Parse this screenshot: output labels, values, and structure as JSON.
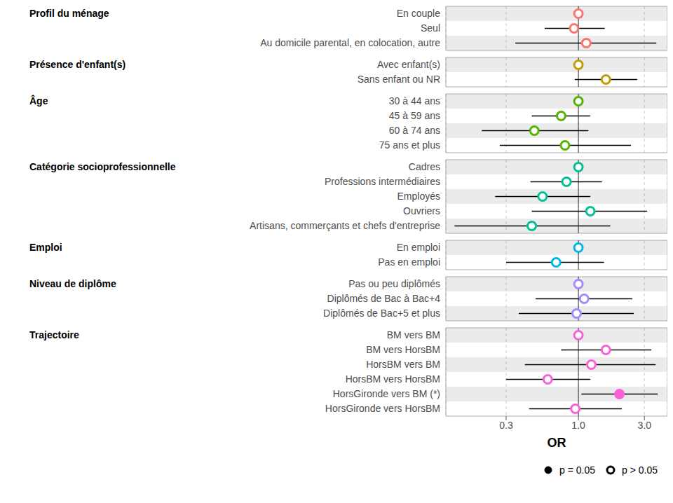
{
  "chart_data": {
    "type": "forest",
    "x_label": "OR",
    "log": "x",
    "xlim": [
      0.11,
      4.4
    ],
    "xticks": [
      0.3,
      {
        "value": 1,
        "label": "1.0"
      },
      {
        "value": 3,
        "label": "3.0"
      }
    ],
    "vline": 1,
    "grid": true,
    "legend": "bottom",
    "legend_items": [
      {
        "label": "p = 0.05",
        "marker": "filled"
      },
      {
        "label": "p > 0.05",
        "marker": "open"
      }
    ],
    "groups": [
      {
        "name": "Profil du ménage",
        "color": "#F8766D",
        "rows": [
          {
            "label": "En couple",
            "or": 1.0,
            "ci_low": null,
            "ci_high": null,
            "marker": "open"
          },
          {
            "label": "Seul",
            "or": 0.93,
            "ci_low": 0.57,
            "ci_high": 1.55,
            "marker": "open"
          },
          {
            "label": "Au domicile parental, en colocation, autre",
            "or": 1.14,
            "ci_low": 0.35,
            "ci_high": 3.66,
            "marker": "open"
          }
        ]
      },
      {
        "name": "Présence d'enfant(s)",
        "color": "#C49A00",
        "rows": [
          {
            "label": "Avec enfant(s)",
            "or": 1.0,
            "ci_low": null,
            "ci_high": null,
            "marker": "open"
          },
          {
            "label": "Sans enfant ou NR",
            "or": 1.58,
            "ci_low": 0.94,
            "ci_high": 2.66,
            "marker": "open"
          }
        ]
      },
      {
        "name": "Âge",
        "color": "#53B400",
        "rows": [
          {
            "label": "30 à 44 ans",
            "or": 1.0,
            "ci_low": null,
            "ci_high": null,
            "marker": "open"
          },
          {
            "label": "45 à 59 ans",
            "or": 0.75,
            "ci_low": 0.46,
            "ci_high": 1.22,
            "marker": "open"
          },
          {
            "label": "60 à 74 ans",
            "or": 0.48,
            "ci_low": 0.2,
            "ci_high": 1.18,
            "marker": "open"
          },
          {
            "label": "75 ans et plus",
            "or": 0.8,
            "ci_low": 0.27,
            "ci_high": 2.4,
            "marker": "open"
          }
        ]
      },
      {
        "name": "Catégorie socioprofessionnelle",
        "color": "#00C094",
        "rows": [
          {
            "label": "Cadres",
            "or": 1.0,
            "ci_low": null,
            "ci_high": null,
            "marker": "open"
          },
          {
            "label": "Professions intermédiaires",
            "or": 0.82,
            "ci_low": 0.45,
            "ci_high": 1.48,
            "marker": "open"
          },
          {
            "label": "Employés",
            "or": 0.55,
            "ci_low": 0.25,
            "ci_high": 1.22,
            "marker": "open"
          },
          {
            "label": "Ouvriers",
            "or": 1.22,
            "ci_low": 0.46,
            "ci_high": 3.14,
            "marker": "open"
          },
          {
            "label": "Artisans, commerçants et chefs d'entreprise",
            "or": 0.46,
            "ci_low": 0.127,
            "ci_high": 1.7,
            "marker": "open"
          }
        ]
      },
      {
        "name": "Emploi",
        "color": "#00B6EB",
        "rows": [
          {
            "label": "En emploi",
            "or": 1.0,
            "ci_low": null,
            "ci_high": null,
            "marker": "open"
          },
          {
            "label": "Pas en emploi",
            "or": 0.69,
            "ci_low": 0.3,
            "ci_high": 1.53,
            "marker": "open"
          }
        ]
      },
      {
        "name": "Niveau de diplôme",
        "color": "#A58AFF",
        "rows": [
          {
            "label": "Pas ou peu diplômés",
            "or": 1.0,
            "ci_low": null,
            "ci_high": null,
            "marker": "open"
          },
          {
            "label": "Diplômés de Bac à Bac+4",
            "or": 1.1,
            "ci_low": 0.49,
            "ci_high": 2.45,
            "marker": "open"
          },
          {
            "label": "Diplômés de Bac+5 et plus",
            "or": 0.97,
            "ci_low": 0.37,
            "ci_high": 2.51,
            "marker": "open"
          }
        ]
      },
      {
        "name": "Trajectoire",
        "color": "#FB61D7",
        "rows": [
          {
            "label": "BM vers BM",
            "or": 1.0,
            "ci_low": null,
            "ci_high": null,
            "marker": "open"
          },
          {
            "label": "BM vers HorsBM",
            "or": 1.58,
            "ci_low": 0.75,
            "ci_high": 3.37,
            "marker": "open"
          },
          {
            "label": "HorsBM vers BM",
            "or": 1.24,
            "ci_low": 0.41,
            "ci_high": 3.62,
            "marker": "open"
          },
          {
            "label": "HorsBM vers HorsBM",
            "or": 0.6,
            "ci_low": 0.3,
            "ci_high": 1.22,
            "marker": "open"
          },
          {
            "label": "HorsGironde vers BM (*)",
            "or": 1.98,
            "ci_low": 1.05,
            "ci_high": 3.75,
            "marker": "filled"
          },
          {
            "label": "HorsGironde vers HorsBM",
            "or": 0.95,
            "ci_low": 0.44,
            "ci_high": 2.06,
            "marker": "open"
          }
        ]
      }
    ]
  }
}
